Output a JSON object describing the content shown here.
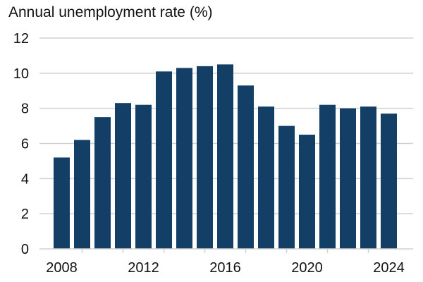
{
  "chart_data": {
    "type": "bar",
    "title": "Annual unemployment rate (%)",
    "xlabel": "",
    "ylabel": "",
    "categories": [
      "2008",
      "2009",
      "2010",
      "2011",
      "2012",
      "2013",
      "2014",
      "2015",
      "2016",
      "2017",
      "2018",
      "2019",
      "2020",
      "2021",
      "2022",
      "2023",
      "2024"
    ],
    "values": [
      5.2,
      6.2,
      7.5,
      8.3,
      8.2,
      10.1,
      10.3,
      10.4,
      10.5,
      9.3,
      8.1,
      7.0,
      6.5,
      8.2,
      8.0,
      8.1,
      7.7
    ],
    "ylim": [
      0,
      12
    ],
    "yticks": [
      0,
      2,
      4,
      6,
      8,
      10,
      12
    ],
    "xtick_labels": [
      "2008",
      "2012",
      "2016",
      "2020",
      "2024"
    ],
    "grid": "horizontal",
    "legend": "none",
    "bar_color": "#133f67",
    "grid_color": "#d0d0d0"
  }
}
